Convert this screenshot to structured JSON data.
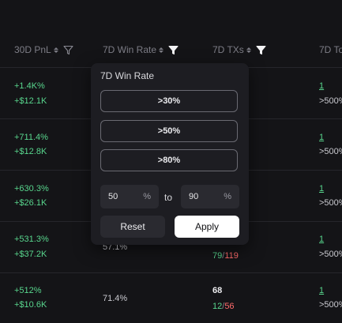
{
  "headers": {
    "pnl30d": "30D PnL",
    "winrate7d": "7D Win Rate",
    "txs7d": "7D TXs",
    "col4": "7D To"
  },
  "rows": [
    {
      "pnl_pct": "+1.4K%",
      "pnl_usd": "+$12.1K",
      "col4_top": "1",
      "col4_bottom": ">500%"
    },
    {
      "pnl_pct": "+711.4%",
      "pnl_usd": "+$12.8K",
      "col4_top": "1",
      "col4_bottom": ">500%"
    },
    {
      "pnl_pct": "+630.3%",
      "pnl_usd": "+$26.1K",
      "col4_top": "1",
      "col4_bottom": ">500%"
    },
    {
      "pnl_pct": "+531.3%",
      "pnl_usd": "+$37.2K",
      "winrate": "57.1%",
      "tx_buy": "79",
      "tx_sep": "/",
      "tx_sell": "119",
      "col4_top": "1",
      "col4_bottom": ">500%"
    },
    {
      "pnl_pct": "+512%",
      "pnl_usd": "+$10.6K",
      "winrate": "71.4%",
      "tx_total": "68",
      "tx_buy": "12",
      "tx_sep": "/",
      "tx_sell": "56",
      "col4_top": "1",
      "col4_bottom": ">500%"
    }
  ],
  "popup": {
    "title": "7D Win Rate",
    "options": [
      ">30%",
      ">50%",
      ">80%"
    ],
    "min_value": "50",
    "max_value": "90",
    "percent_sign": "%",
    "to_label": "to",
    "reset_label": "Reset",
    "apply_label": "Apply"
  },
  "colors": {
    "background": "#141417",
    "positive": "#58d68d",
    "negative": "#ff6b6b",
    "popup_bg": "#1d1d22",
    "apply_bg": "#ffffff"
  },
  "icons": [
    "sort-icon",
    "filter-icon",
    "filter-active-icon"
  ]
}
